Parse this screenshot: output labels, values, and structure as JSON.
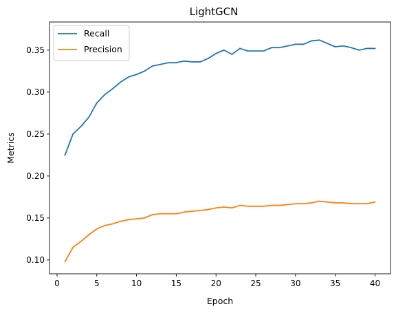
{
  "chart_data": {
    "type": "line",
    "title": "LightGCN",
    "xlabel": "Epoch",
    "ylabel": "Metrics",
    "xlim": [
      -0.95,
      41.95
    ],
    "ylim": [
      0.0835,
      0.3835
    ],
    "xticks": [
      0,
      5,
      10,
      15,
      20,
      25,
      30,
      35,
      40
    ],
    "yticks": [
      0.1,
      0.15,
      0.2,
      0.25,
      0.3,
      0.35
    ],
    "xtick_labels": [
      "0",
      "5",
      "10",
      "15",
      "20",
      "25",
      "30",
      "35",
      "40"
    ],
    "ytick_labels": [
      "0.10",
      "0.15",
      "0.20",
      "0.25",
      "0.30",
      "0.35"
    ],
    "grid": false,
    "legend_position": "top-left",
    "x": [
      1,
      2,
      3,
      4,
      5,
      6,
      7,
      8,
      9,
      10,
      11,
      12,
      13,
      14,
      15,
      16,
      17,
      18,
      19,
      20,
      21,
      22,
      23,
      24,
      25,
      26,
      27,
      28,
      29,
      30,
      31,
      32,
      33,
      34,
      35,
      36,
      37,
      38,
      39,
      40
    ],
    "series": [
      {
        "name": "Recall",
        "color": "#1f77b4",
        "values": [
          0.225,
          0.25,
          0.259,
          0.27,
          0.287,
          0.297,
          0.304,
          0.312,
          0.318,
          0.321,
          0.325,
          0.331,
          0.333,
          0.335,
          0.335,
          0.337,
          0.336,
          0.336,
          0.34,
          0.346,
          0.35,
          0.345,
          0.352,
          0.349,
          0.349,
          0.349,
          0.353,
          0.353,
          0.355,
          0.357,
          0.357,
          0.361,
          0.362,
          0.358,
          0.354,
          0.355,
          0.353,
          0.35,
          0.352,
          0.352
        ]
      },
      {
        "name": "Precision",
        "color": "#ff7f0e",
        "values": [
          0.098,
          0.115,
          0.122,
          0.13,
          0.137,
          0.141,
          0.143,
          0.146,
          0.148,
          0.149,
          0.15,
          0.154,
          0.155,
          0.155,
          0.155,
          0.157,
          0.158,
          0.159,
          0.16,
          0.162,
          0.163,
          0.162,
          0.165,
          0.164,
          0.164,
          0.164,
          0.165,
          0.165,
          0.166,
          0.167,
          0.167,
          0.168,
          0.17,
          0.169,
          0.168,
          0.168,
          0.167,
          0.167,
          0.167,
          0.169
        ]
      }
    ]
  }
}
